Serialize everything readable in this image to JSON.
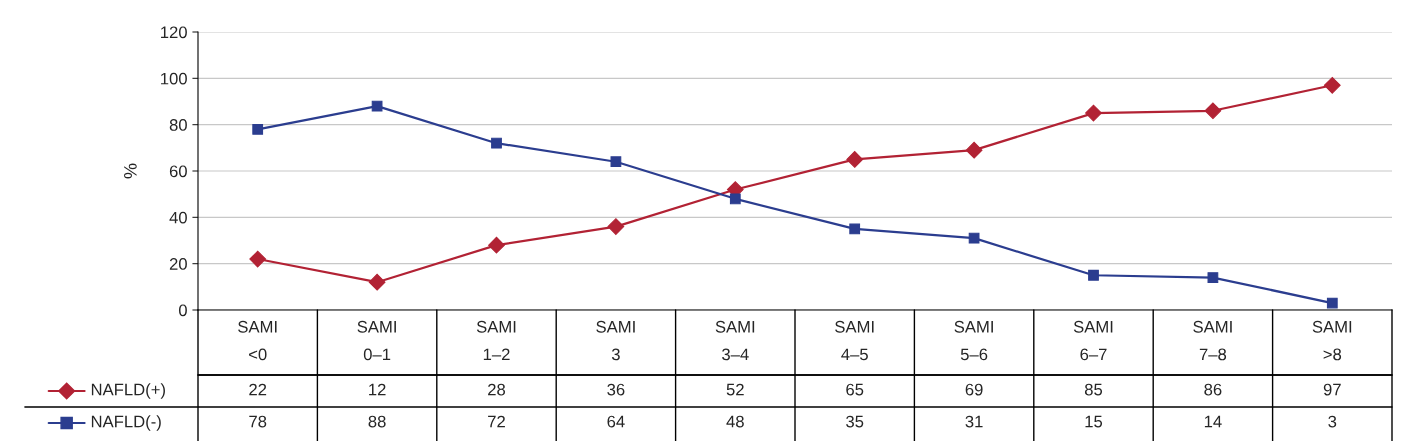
{
  "chart_data": {
    "type": "line",
    "ylabel": "%",
    "categories": [
      "SAMI\n<0",
      "SAMI\n0–1",
      "SAMI\n1–2",
      "SAMI\n3",
      "SAMI\n3–4",
      "SAMI\n4–5",
      "SAMI\n5–6",
      "SAMI\n6–7",
      "SAMI\n7–8",
      "SAMI\n>8"
    ],
    "series": [
      {
        "name": "NAFLD(+)",
        "color": "#b22234",
        "marker": "diamond",
        "values": [
          22,
          12,
          28,
          36,
          52,
          65,
          69,
          85,
          86,
          97
        ]
      },
      {
        "name": "NAFLD(-)",
        "color": "#2b3d8f",
        "marker": "square",
        "values": [
          78,
          88,
          72,
          64,
          48,
          35,
          31,
          15,
          14,
          3
        ]
      }
    ],
    "ylim": [
      0,
      120
    ],
    "yticks": [
      0,
      20,
      40,
      60,
      80,
      100,
      120
    ],
    "grid": "y",
    "legend": "bottom left",
    "data_labels": true,
    "line_style": "solid"
  }
}
